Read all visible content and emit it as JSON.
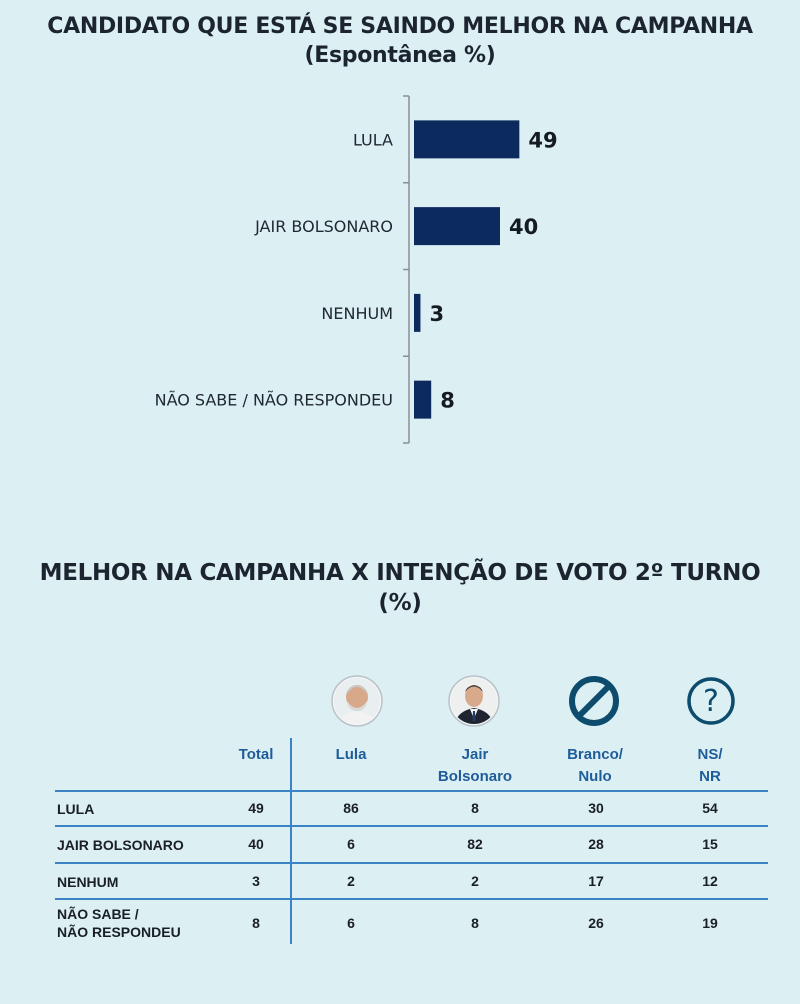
{
  "chart_title": [
    "CANDIDATO QUE ESTÁ SE SAINDO MELHOR NA CAMPANHA",
    "(Espontânea %)"
  ],
  "chart_data": {
    "type": "bar",
    "orientation": "horizontal",
    "categories": [
      "LULA",
      "JAIR BOLSONARO",
      "NENHUM",
      "NÃO SABE / NÃO RESPONDEU"
    ],
    "values": [
      49,
      40,
      3,
      8
    ],
    "xlim": [
      0,
      100
    ],
    "grid": false,
    "legend": "none",
    "bar_color": "#0d2a5e"
  },
  "table_title": [
    "MELHOR NA CAMPANHA X INTENÇÃO DE VOTO 2º TURNO",
    "(%)"
  ],
  "table": {
    "columns": [
      {
        "label": [
          "Total"
        ],
        "icon": ""
      },
      {
        "label": [
          "Lula"
        ],
        "icon": "lula-photo-icon"
      },
      {
        "label": [
          "Jair",
          "Bolsonaro"
        ],
        "icon": "bolsonaro-photo-icon"
      },
      {
        "label": [
          "Branco/",
          "Nulo"
        ],
        "icon": "prohibited-icon"
      },
      {
        "label": [
          "NS/",
          "NR"
        ],
        "icon": "question-mark-icon"
      }
    ],
    "rows": [
      {
        "label": [
          "LULA"
        ],
        "values": [
          "49",
          "86",
          "8",
          "30",
          "54"
        ]
      },
      {
        "label": [
          "JAIR BOLSONARO"
        ],
        "values": [
          "40",
          "6",
          "82",
          "28",
          "15"
        ]
      },
      {
        "label": [
          "NENHUM"
        ],
        "values": [
          "3",
          "2",
          "2",
          "17",
          "12"
        ]
      },
      {
        "label": [
          "NÃO SABE /",
          "NÃO RESPONDEU"
        ],
        "values": [
          "8",
          "6",
          "8",
          "26",
          "19"
        ]
      }
    ],
    "accent_color": "#3a84c6",
    "header_color": "#1f5c9a",
    "icon_color": "#0e4c6e"
  }
}
